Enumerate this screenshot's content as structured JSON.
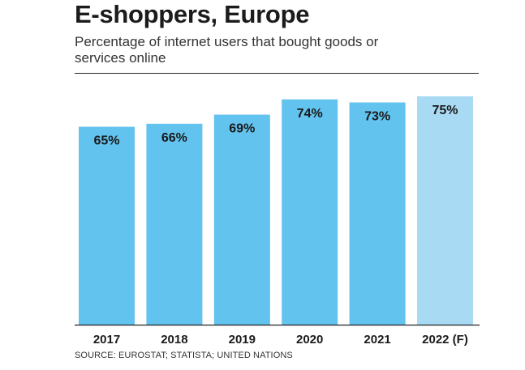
{
  "header": {
    "title": "E-shoppers, Europe",
    "subtitle": "Percentage of internet users that bought goods or services online"
  },
  "footer": {
    "source": "SOURCE: EUROSTAT; STATISTA; UNITED NATIONS"
  },
  "colors": {
    "bar": "#63c3ef",
    "bar_forecast": "#a8daf4",
    "text": "#1a1a1a"
  },
  "chart_data": {
    "type": "bar",
    "title": "E-shoppers, Europe",
    "subtitle": "Percentage of internet users that bought goods or services online",
    "categories": [
      "2017",
      "2018",
      "2019",
      "2020",
      "2021",
      "2022 (F)"
    ],
    "values": [
      65,
      66,
      69,
      74,
      73,
      75
    ],
    "value_labels": [
      "65%",
      "66%",
      "69%",
      "74%",
      "73%",
      "75%"
    ],
    "forecast": [
      false,
      false,
      false,
      false,
      false,
      true
    ],
    "xlabel": "",
    "ylabel": "",
    "unit": "%",
    "grid": false,
    "legend": "none"
  }
}
